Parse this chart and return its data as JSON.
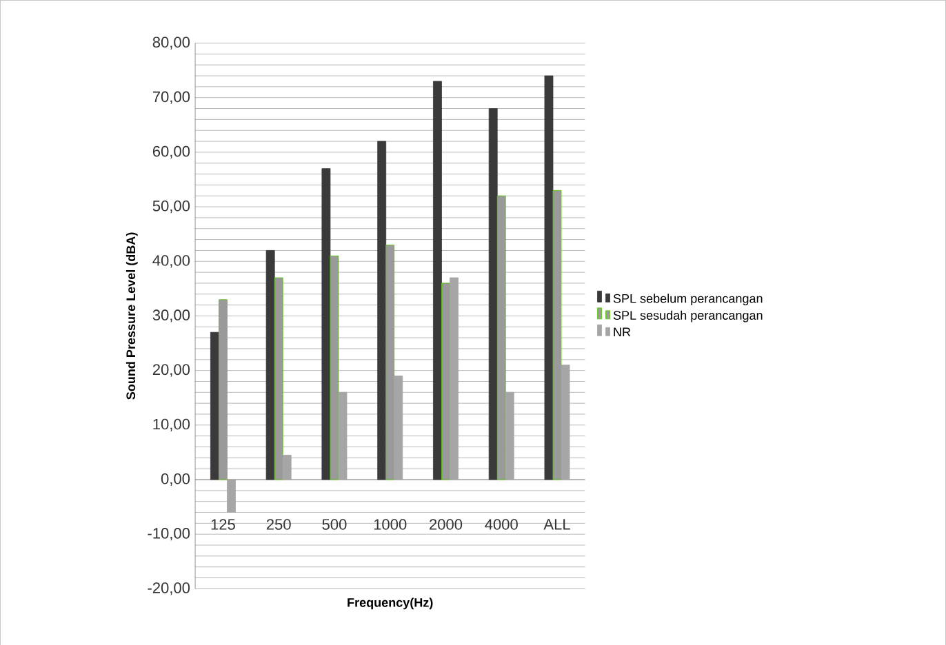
{
  "chart_data": {
    "type": "bar",
    "xlabel": "Frequency(Hz)",
    "ylabel": "Sound Pressure Level (dBA)",
    "categories": [
      "125",
      "250",
      "500",
      "1000",
      "2000",
      "4000",
      "ALL"
    ],
    "series": [
      {
        "name": "SPL sebelum perancangan",
        "color": "#3a3a3a",
        "values": [
          27,
          42,
          57,
          62,
          73,
          68,
          74
        ]
      },
      {
        "name": "SPL sesudah perancangan",
        "color": "#9a9a9a",
        "values": [
          33,
          37,
          41,
          43,
          36,
          52,
          53
        ]
      },
      {
        "name": "NR",
        "color": "#a6a6a6",
        "values": [
          -6,
          4.5,
          16,
          19,
          37,
          16,
          21
        ]
      }
    ],
    "ylim": [
      -20,
      80
    ],
    "yticks": [
      {
        "value": -20,
        "label": "-20,00"
      },
      {
        "value": -10,
        "label": "-10,00"
      },
      {
        "value": 0,
        "label": "0,00"
      },
      {
        "value": 10,
        "label": "10,00"
      },
      {
        "value": 20,
        "label": "20,00"
      },
      {
        "value": 30,
        "label": "30,00"
      },
      {
        "value": 40,
        "label": "40,00"
      },
      {
        "value": 50,
        "label": "50,00"
      },
      {
        "value": 60,
        "label": "60,00"
      },
      {
        "value": 70,
        "label": "70,00"
      },
      {
        "value": 80,
        "label": "80,00"
      }
    ],
    "grid": "y",
    "legend": "right"
  }
}
